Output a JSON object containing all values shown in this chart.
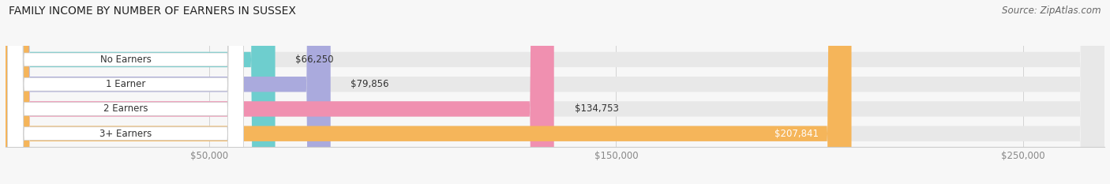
{
  "title": "FAMILY INCOME BY NUMBER OF EARNERS IN SUSSEX",
  "source": "Source: ZipAtlas.com",
  "categories": [
    "No Earners",
    "1 Earner",
    "2 Earners",
    "3+ Earners"
  ],
  "values": [
    66250,
    79856,
    134753,
    207841
  ],
  "labels": [
    "$66,250",
    "$79,856",
    "$134,753",
    "$207,841"
  ],
  "bar_colors": [
    "#6ecece",
    "#aaaadd",
    "#f090b0",
    "#f5b55a"
  ],
  "bar_bg_color": "#e8e8e8",
  "background_color": "#f7f7f7",
  "x_ticks": [
    50000,
    150000,
    250000
  ],
  "x_tick_labels": [
    "$50,000",
    "$150,000",
    "$250,000"
  ],
  "xmin": 0,
  "xmax": 270000,
  "title_fontsize": 10,
  "source_fontsize": 8.5,
  "label_fontsize": 8.5,
  "category_fontsize": 8.5,
  "tick_fontsize": 8.5,
  "label_inside_idx": 3
}
